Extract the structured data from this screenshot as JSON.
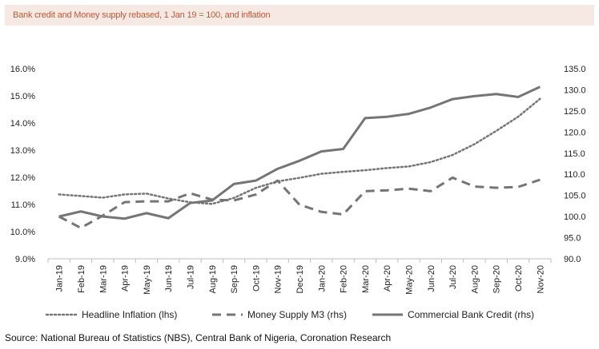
{
  "header": {
    "title": "Bank credit and Money supply rebased, 1 Jan 19 = 100, and inflation"
  },
  "footer": {
    "source": "Source: National Bureau of Statistics (NBS), Central Bank of Nigeria, Coronation Research"
  },
  "colors": {
    "series": "#757575",
    "axis_text": "#222222",
    "title_text": "#b85a3a",
    "title_bg": "#f6e9e4"
  },
  "chart_data": {
    "type": "line",
    "title": "Bank credit and Money supply rebased, 1 Jan 19 = 100, and inflation",
    "categories": [
      "Jan-19",
      "Feb-19",
      "Mar-19",
      "Apr-19",
      "May-19",
      "Jun-19",
      "Jul-19",
      "Aug-19",
      "Sep-19",
      "Oct-19",
      "Nov-19",
      "Dec-19",
      "Jan-20",
      "Feb-20",
      "Mar-20",
      "Apr-20",
      "May-20",
      "Jun-20",
      "Jul-20",
      "Aug-20",
      "Sep-20",
      "Oct-20",
      "Nov-20"
    ],
    "y_left": {
      "ylim": [
        9.0,
        16.0
      ],
      "ticks": [
        "9.0%",
        "10.0%",
        "11.0%",
        "12.0%",
        "13.0%",
        "14.0%",
        "15.0%",
        "16.0%"
      ]
    },
    "y_right": {
      "ylim": [
        90.0,
        135.0
      ],
      "ticks": [
        "90.0",
        "95.0",
        "100.0",
        "105.0",
        "110.0",
        "115.0",
        "120.0",
        "125.0",
        "130.0",
        "135.0"
      ]
    },
    "series": [
      {
        "name": "Headline Inflation (lhs)",
        "axis": "left",
        "style": "dotted",
        "values": [
          11.37,
          11.31,
          11.25,
          11.37,
          11.4,
          11.22,
          11.08,
          11.02,
          11.24,
          11.61,
          11.85,
          11.98,
          12.13,
          12.2,
          12.26,
          12.34,
          12.4,
          12.56,
          12.82,
          13.22,
          13.71,
          14.23,
          14.89
        ]
      },
      {
        "name": "Money Supply M3 (rhs)",
        "axis": "right",
        "style": "dashed",
        "values": [
          100.0,
          97.3,
          100.2,
          103.4,
          103.6,
          103.6,
          105.5,
          104.0,
          103.8,
          105.2,
          108.5,
          102.8,
          101.1,
          100.5,
          106.0,
          106.2,
          106.6,
          106.0,
          109.2,
          107.1,
          106.8,
          107.0,
          108.7
        ]
      },
      {
        "name": "Commercial Bank Credit (rhs)",
        "axis": "right",
        "style": "solid",
        "values": [
          100.0,
          101.2,
          100.0,
          99.5,
          100.8,
          99.6,
          103.2,
          103.8,
          107.7,
          108.5,
          111.3,
          113.2,
          115.4,
          116.0,
          123.3,
          123.6,
          124.3,
          125.8,
          127.8,
          128.5,
          129.0,
          128.3,
          130.7
        ]
      }
    ],
    "legend_position": "bottom",
    "grid": false
  }
}
